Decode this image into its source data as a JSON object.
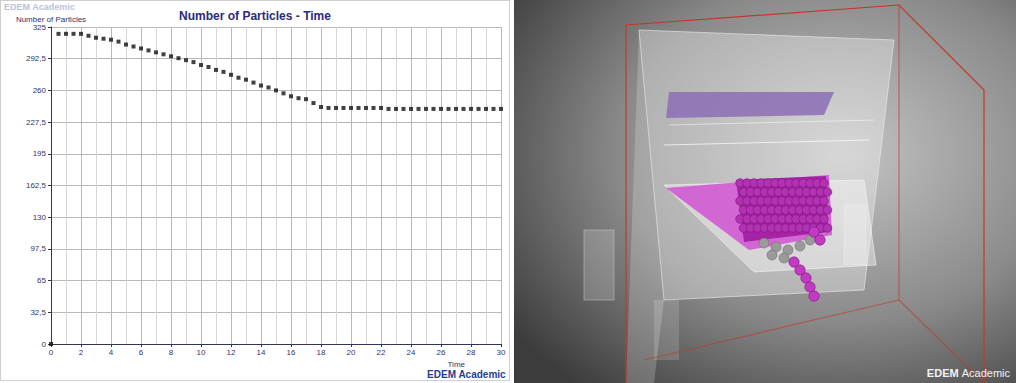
{
  "chart_data": {
    "type": "scatter",
    "title": "Number of Particles - Time",
    "y_label": "Number of Particles",
    "x_label": "Time",
    "annotations": [
      "EDEM Academic",
      "EDEM Academic"
    ],
    "x": [
      0,
      0.5,
      1,
      1.5,
      2,
      2.5,
      3,
      3.5,
      4,
      4.5,
      5,
      5.5,
      6,
      6.5,
      7,
      7.5,
      8,
      8.5,
      9,
      9.5,
      10,
      10.5,
      11,
      11.5,
      12,
      12.5,
      13,
      13.5,
      14,
      14.5,
      15,
      15.5,
      16,
      16.5,
      17,
      17.5,
      18,
      18.5,
      19,
      19.5,
      20,
      20.5,
      21,
      21.5,
      22,
      22.5,
      23,
      23.5,
      24,
      24.5,
      25,
      25.5,
      26,
      26.5,
      27,
      27.5,
      28,
      28.5,
      29,
      29.5,
      30
    ],
    "values": [
      0,
      318,
      318,
      318,
      318,
      316,
      314,
      313,
      312,
      310,
      307,
      305,
      303,
      301,
      299,
      297,
      295,
      293,
      291,
      289,
      286,
      284,
      281,
      279,
      276,
      273,
      271,
      268,
      265,
      263,
      260,
      257,
      254,
      252,
      251,
      247,
      243,
      242,
      242,
      242,
      242,
      242,
      242,
      242,
      242,
      241,
      241,
      241,
      241,
      241,
      241,
      241,
      241,
      241,
      241,
      241,
      241,
      241,
      241,
      241,
      241
    ],
    "color": "#111111",
    "marker": "square",
    "xlim": [
      0,
      30
    ],
    "xticks": [
      0,
      2,
      4,
      6,
      8,
      10,
      12,
      14,
      16,
      18,
      20,
      22,
      24,
      26,
      28,
      30
    ],
    "ylim": [
      0,
      325
    ],
    "yticks": [
      0,
      {
        "value": 32.5,
        "label": "32,5"
      },
      65,
      {
        "value": 97.5,
        "label": "97,5"
      },
      130,
      {
        "value": 162.5,
        "label": "162,5"
      },
      195,
      {
        "value": 227.5,
        "label": "227,5"
      },
      260,
      {
        "value": 292.5,
        "label": "292,5"
      },
      325
    ],
    "grid": true
  },
  "scene": {
    "watermark": "EDEM Academic"
  }
}
